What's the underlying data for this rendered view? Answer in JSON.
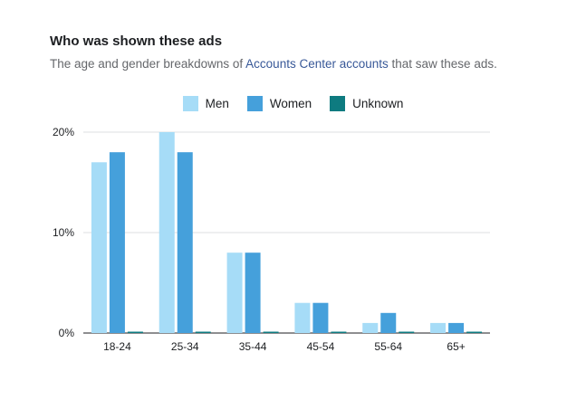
{
  "header": {
    "title": "Who was shown these ads",
    "subtitle_before": "The age and gender breakdowns of ",
    "subtitle_link": "Accounts Center accounts",
    "subtitle_after": " that saw these ads."
  },
  "colors": {
    "men": "#a6dcf7",
    "women": "#45a0db",
    "unknown": "#0e7b80",
    "grid": "#dddfe2",
    "axis": "#1c1e21"
  },
  "chart_data": {
    "type": "bar",
    "categories": [
      "18-24",
      "25-34",
      "35-44",
      "45-54",
      "55-64",
      "65+"
    ],
    "series": [
      {
        "name": "Men",
        "values": [
          17,
          20,
          8,
          3,
          1,
          1
        ]
      },
      {
        "name": "Women",
        "values": [
          18,
          18,
          8,
          3,
          2,
          1
        ]
      },
      {
        "name": "Unknown",
        "values": [
          0.1,
          0.1,
          0.1,
          0.1,
          0.1,
          0.1
        ]
      }
    ],
    "yticks": [
      "0%",
      "10%",
      "20%"
    ],
    "ylim": [
      0,
      20
    ],
    "grid": true,
    "legend_position": "top-center",
    "title": "",
    "xlabel": "",
    "ylabel": ""
  }
}
